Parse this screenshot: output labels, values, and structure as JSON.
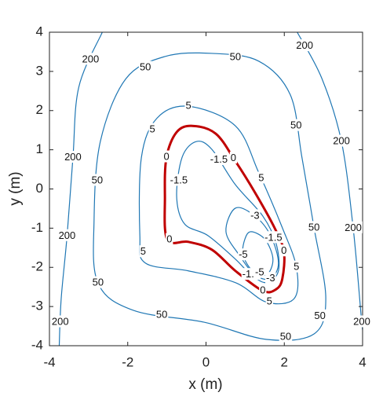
{
  "chart_data": {
    "type": "contour",
    "xlabel": "x (m)",
    "ylabel": "y (m)",
    "xlim": [
      -4,
      4
    ],
    "ylim": [
      -4,
      4
    ],
    "xticks": [
      -4,
      -2,
      0,
      2,
      4
    ],
    "yticks": [
      -4,
      -3,
      -2,
      -1,
      0,
      1,
      2,
      3,
      4
    ],
    "contours": [
      {
        "level": 200,
        "color": "#1f77b4",
        "closed": false,
        "x": [
          -2.65,
          -3.25,
          -3.4,
          -3.55,
          -3.7,
          -3.75
        ],
        "y": [
          4,
          2.6,
          0.8,
          -1.2,
          -2.8,
          -4
        ]
      },
      {
        "level": 200,
        "color": "#1f77b4",
        "closed": false,
        "x": [
          2.33,
          2.96,
          3.46,
          3.76,
          3.96,
          4
        ],
        "y": [
          4,
          2.82,
          1.21,
          -1.0,
          -3.2,
          -3.6
        ]
      },
      {
        "level": 50,
        "color": "#1f77b4",
        "closed": true,
        "x": [
          0.15,
          1.35,
          2.15,
          2.45,
          2.76,
          3.06,
          2.76,
          1.55,
          -0.05,
          -1.85,
          -2.76,
          -2.86,
          -2.7,
          -2.05,
          -1.05
        ],
        "y": [
          3.46,
          3.26,
          2.41,
          0.81,
          -0.99,
          -2.79,
          -3.7,
          -3.84,
          -3.4,
          -3.1,
          -2.4,
          -0.79,
          1.21,
          2.81,
          3.38
        ]
      },
      {
        "level": 5,
        "color": "#1f77b4",
        "closed": true,
        "x": [
          -0.45,
          0.75,
          1.35,
          1.95,
          2.31,
          2.25,
          1.55,
          0.75,
          -0.45,
          -1.55,
          -1.69,
          -1.65,
          -1.25
        ],
        "y": [
          2.11,
          1.61,
          0.41,
          -0.99,
          -2.0,
          -2.8,
          -2.89,
          -2.39,
          -2.09,
          -1.89,
          -1.19,
          0.81,
          1.81
        ]
      },
      {
        "level": 0,
        "color": "#c00000",
        "closed": true,
        "x": [
          -1.01,
          -0.75,
          -0.35,
          0.25,
          0.75,
          1.25,
          1.75,
          1.99,
          1.95,
          1.79,
          1.45,
          0.75,
          0.15,
          -0.45,
          -0.99,
          -1.05
        ],
        "y": [
          0.81,
          1.45,
          1.61,
          1.41,
          0.71,
          -0.09,
          -0.99,
          -1.59,
          -2.29,
          -2.56,
          -2.6,
          -2.09,
          -1.55,
          -1.35,
          -1.29,
          -0.19
        ]
      },
      {
        "level": -1.5,
        "color": "#1f77b4",
        "closed": true,
        "x": [
          -0.25,
          0.15,
          0.75,
          1.45,
          1.79,
          1.85,
          1.55,
          1.15,
          0.75,
          0.05,
          -0.55,
          -0.75,
          -0.61
        ],
        "y": [
          1.21,
          1.01,
          0.11,
          -0.69,
          -1.39,
          -2.09,
          -2.39,
          -2.19,
          -1.79,
          -1.19,
          -0.89,
          -0.19,
          0.81
        ]
      },
      {
        "level": -3,
        "color": "#1f77b4",
        "closed": true,
        "x": [
          0.75,
          1.25,
          1.65,
          1.85,
          1.65,
          1.25,
          0.85,
          0.51
        ],
        "y": [
          -0.49,
          -0.69,
          -1.19,
          -1.89,
          -2.29,
          -2.19,
          -1.69,
          -1.09
        ]
      },
      {
        "level": -5,
        "color": "#1f77b4",
        "closed": true,
        "x": [
          1.15,
          1.51,
          1.71,
          1.55,
          1.19,
          0.95,
          0.99
        ],
        "y": [
          -1.09,
          -1.29,
          -1.79,
          -2.19,
          -2.09,
          -1.69,
          -1.29
        ]
      }
    ]
  }
}
